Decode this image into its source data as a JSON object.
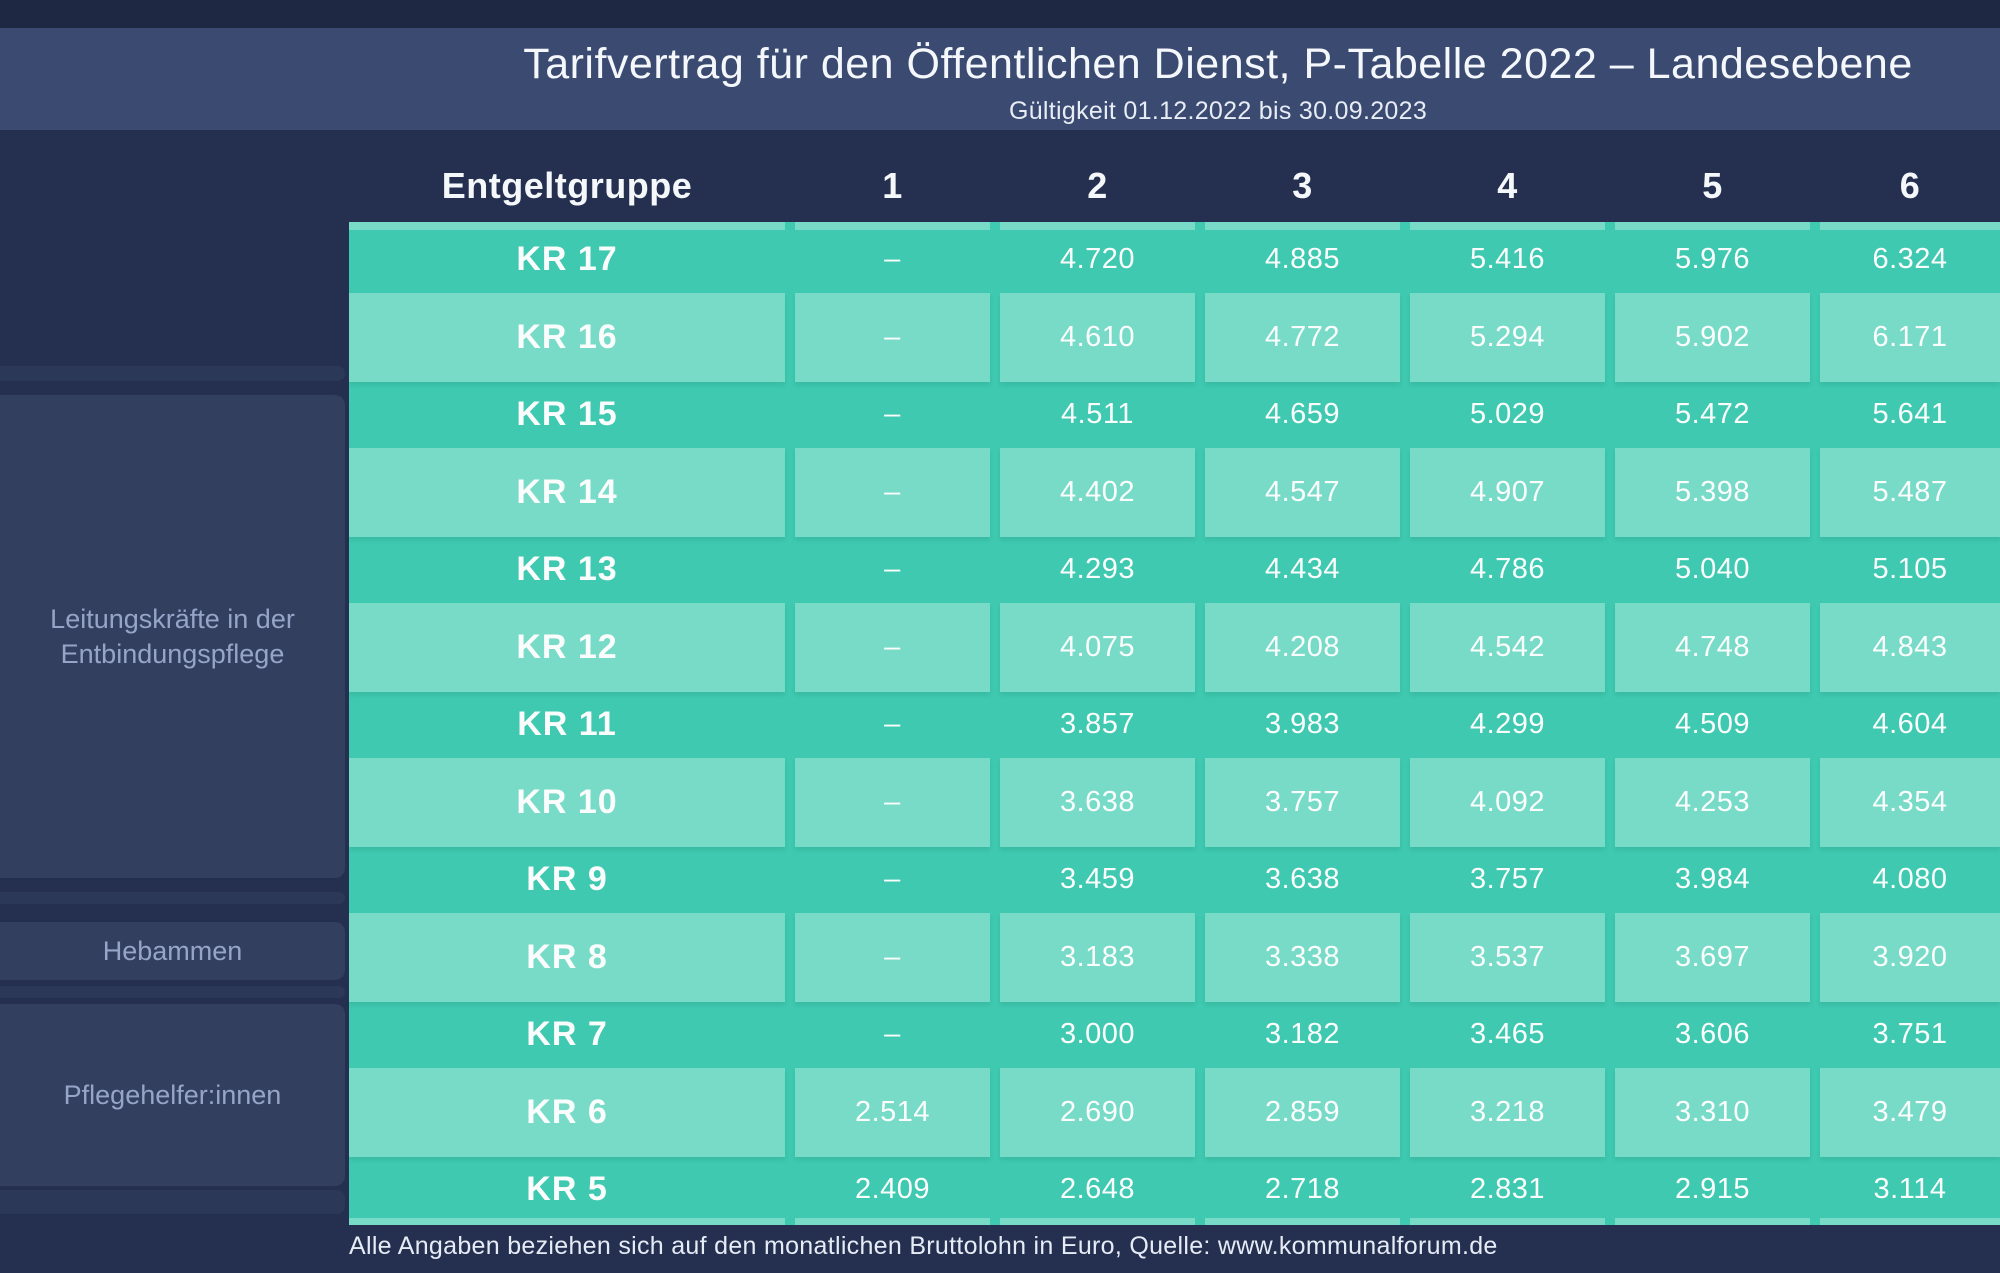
{
  "title": "Tarifvertrag für den Öffentlichen Dienst, P-Tabelle 2022 – Landesebene",
  "subtitle": "Gültigkeit 01.12.2022 bis 30.09.2023",
  "footer": "Alle Angaben beziehen sich auf den monatlichen Bruttolohn in Euro, Quelle: www.kommunalforum.de",
  "sidebar": {
    "groups": [
      "Leitungskräfte in der Entbindungspflege",
      "Hebammen",
      "Pflegehelfer:innen"
    ]
  },
  "colors": {
    "background_navy": "#253050",
    "top_strip_navy": "#1e2843",
    "title_band_navy": "#3b4a70",
    "teal_dark": "#3ec9b0",
    "teal_light": "#78dbc8",
    "sidebar_card": "#333f5f",
    "sidebar_text": "#96a5c7",
    "text_white": "#f5f8fb"
  },
  "chart_data": {
    "type": "table",
    "title": "Tarifvertrag für den Öffentlichen Dienst, P-Tabelle 2022 – Landesebene",
    "subtitle": "Gültigkeit 01.12.2022 bis 30.09.2023",
    "unit": "Euro (monatlicher Bruttolohn)",
    "columns": [
      "Entgeltgruppe",
      "1",
      "2",
      "3",
      "4",
      "5",
      "6"
    ],
    "rows": [
      {
        "label": "KR 17",
        "values": [
          "–",
          "4.720",
          "4.885",
          "5.416",
          "5.976",
          "6.324"
        ]
      },
      {
        "label": "KR 16",
        "values": [
          "–",
          "4.610",
          "4.772",
          "5.294",
          "5.902",
          "6.171"
        ]
      },
      {
        "label": "KR 15",
        "values": [
          "–",
          "4.511",
          "4.659",
          "5.029",
          "5.472",
          "5.641"
        ]
      },
      {
        "label": "KR 14",
        "values": [
          "–",
          "4.402",
          "4.547",
          "4.907",
          "5.398",
          "5.487"
        ]
      },
      {
        "label": "KR 13",
        "values": [
          "–",
          "4.293",
          "4.434",
          "4.786",
          "5.040",
          "5.105"
        ]
      },
      {
        "label": "KR 12",
        "values": [
          "–",
          "4.075",
          "4.208",
          "4.542",
          "4.748",
          "4.843"
        ]
      },
      {
        "label": "KR 11",
        "values": [
          "–",
          "3.857",
          "3.983",
          "4.299",
          "4.509",
          "4.604"
        ]
      },
      {
        "label": "KR 10",
        "values": [
          "–",
          "3.638",
          "3.757",
          "4.092",
          "4.253",
          "4.354"
        ]
      },
      {
        "label": "KR 9",
        "values": [
          "–",
          "3.459",
          "3.638",
          "3.757",
          "3.984",
          "4.080"
        ]
      },
      {
        "label": "KR 8",
        "values": [
          "–",
          "3.183",
          "3.338",
          "3.537",
          "3.697",
          "3.920"
        ]
      },
      {
        "label": "KR 7",
        "values": [
          "–",
          "3.000",
          "3.182",
          "3.465",
          "3.606",
          "3.751"
        ]
      },
      {
        "label": "KR 6",
        "values": [
          "2.514",
          "2.690",
          "2.859",
          "3.218",
          "3.310",
          "3.479"
        ]
      },
      {
        "label": "KR 5",
        "values": [
          "2.409",
          "2.648",
          "2.718",
          "2.831",
          "2.915",
          "3.114"
        ]
      }
    ],
    "row_groups": [
      {
        "label": "Leitungskräfte in der Entbindungspflege",
        "rows": [
          "KR 17",
          "KR 16",
          "KR 15",
          "KR 14",
          "KR 13",
          "KR 12",
          "KR 11",
          "KR 10",
          "KR 9"
        ]
      },
      {
        "label": "Hebammen",
        "rows": [
          "KR 8",
          "KR 7"
        ]
      },
      {
        "label": "Pflegehelfer:innen",
        "rows": [
          "KR 6",
          "KR 5"
        ]
      }
    ]
  }
}
